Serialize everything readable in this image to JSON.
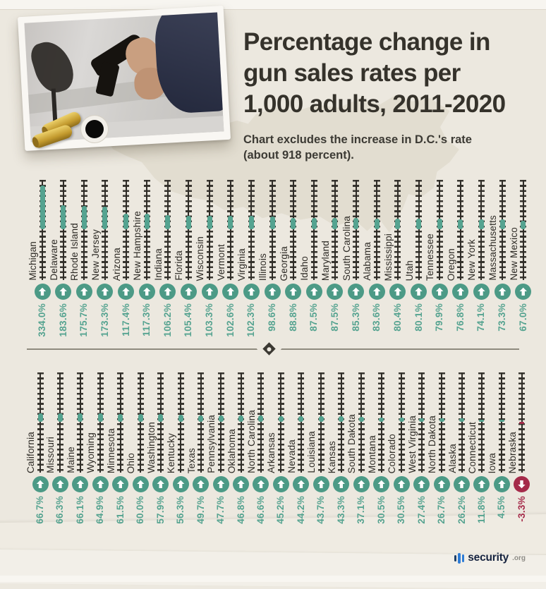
{
  "header": {
    "title_lines": [
      "Percentage change in",
      "gun sales rates per",
      "1,000 adults, 2011-2020"
    ],
    "subtitle_lines": [
      "Chart excludes the increase in D.C.'s rate",
      "(about 918 percent)."
    ]
  },
  "footer": {
    "brand": "security",
    "brand_suffix": ".org"
  },
  "colors": {
    "teal": "#55a390",
    "teal_badge": "#4c9a86",
    "negative_red": "#a52b4a",
    "ink": "#2f2c27",
    "background": "#ece8df"
  },
  "chart_data": {
    "type": "bar",
    "title": "Percentage change in gun sales rates per 1,000 adults, 2011-2020",
    "note": "Chart excludes the increase in D.C.'s rate (about 918 percent).",
    "unit": "percent",
    "value_range_shown": [
      -3.3,
      334.0
    ],
    "legend": "teal up-arrow = increase, red down-arrow = decrease",
    "rows": [
      {
        "states": [
          "Michigan",
          "Delaware",
          "Rhode Island",
          "New Jersey",
          "Arizona",
          "New Hampshire",
          "Indiana",
          "Florida",
          "Wisconsin",
          "Vermont",
          "Virginia",
          "Illinois",
          "Georgia",
          "Idaho",
          "Maryland",
          "South Carolina",
          "Alabama",
          "Mississippi",
          "Utah",
          "Tennessee",
          "Oregon",
          "New York",
          "Massachusetts",
          "New Mexico"
        ],
        "values": [
          334.0,
          183.6,
          175.7,
          173.3,
          117.4,
          117.3,
          106.2,
          105.4,
          103.3,
          102.6,
          102.3,
          98.6,
          88.8,
          87.5,
          87.5,
          85.3,
          83.6,
          80.4,
          80.1,
          79.9,
          76.8,
          74.1,
          73.3,
          67.0
        ],
        "labels": [
          "334.0%",
          "183.6%",
          "175.7%",
          "173.3%",
          "117.4%",
          "117.3%",
          "106.2%",
          "105.4%",
          "103.3%",
          "102.6%",
          "102.3%",
          "98.6%",
          "88.8%",
          "87.5%",
          "87.5%",
          "85.3%",
          "83.6%",
          "80.4%",
          "80.1%",
          "79.9%",
          "76.8%",
          "74.1%",
          "73.3%",
          "67.0%"
        ]
      },
      {
        "states": [
          "California",
          "Missouri",
          "Maine",
          "Wyoming",
          "Minnesota",
          "Ohio",
          "Washington",
          "Kentucky",
          "Texas",
          "Pennsylvania",
          "Oklahoma",
          "North Carolina",
          "Arkansas",
          "Nevada",
          "Louisiana",
          "Kansas",
          "South Dakota",
          "Montana",
          "Colorado",
          "West Virginia",
          "North Dakota",
          "Alaska",
          "Connecticut",
          "Iowa",
          "Nebraska"
        ],
        "values": [
          66.7,
          66.3,
          66.1,
          64.9,
          61.5,
          60.0,
          57.9,
          56.3,
          49.7,
          47.7,
          46.8,
          46.6,
          45.2,
          44.2,
          43.7,
          43.3,
          37.1,
          30.5,
          30.5,
          27.4,
          26.7,
          26.2,
          11.8,
          4.5,
          -3.3
        ],
        "labels": [
          "66.7%",
          "66.3%",
          "66.1%",
          "64.9%",
          "61.5%",
          "60.0%",
          "57.9%",
          "56.3%",
          "49.7%",
          "47.7%",
          "46.8%",
          "46.6%",
          "45.2%",
          "44.2%",
          "43.7%",
          "43.3%",
          "37.1%",
          "30.5%",
          "30.5%",
          "27.4%",
          "26.7%",
          "26.2%",
          "11.8%",
          "4.5%",
          "-3.3%"
        ]
      }
    ]
  }
}
